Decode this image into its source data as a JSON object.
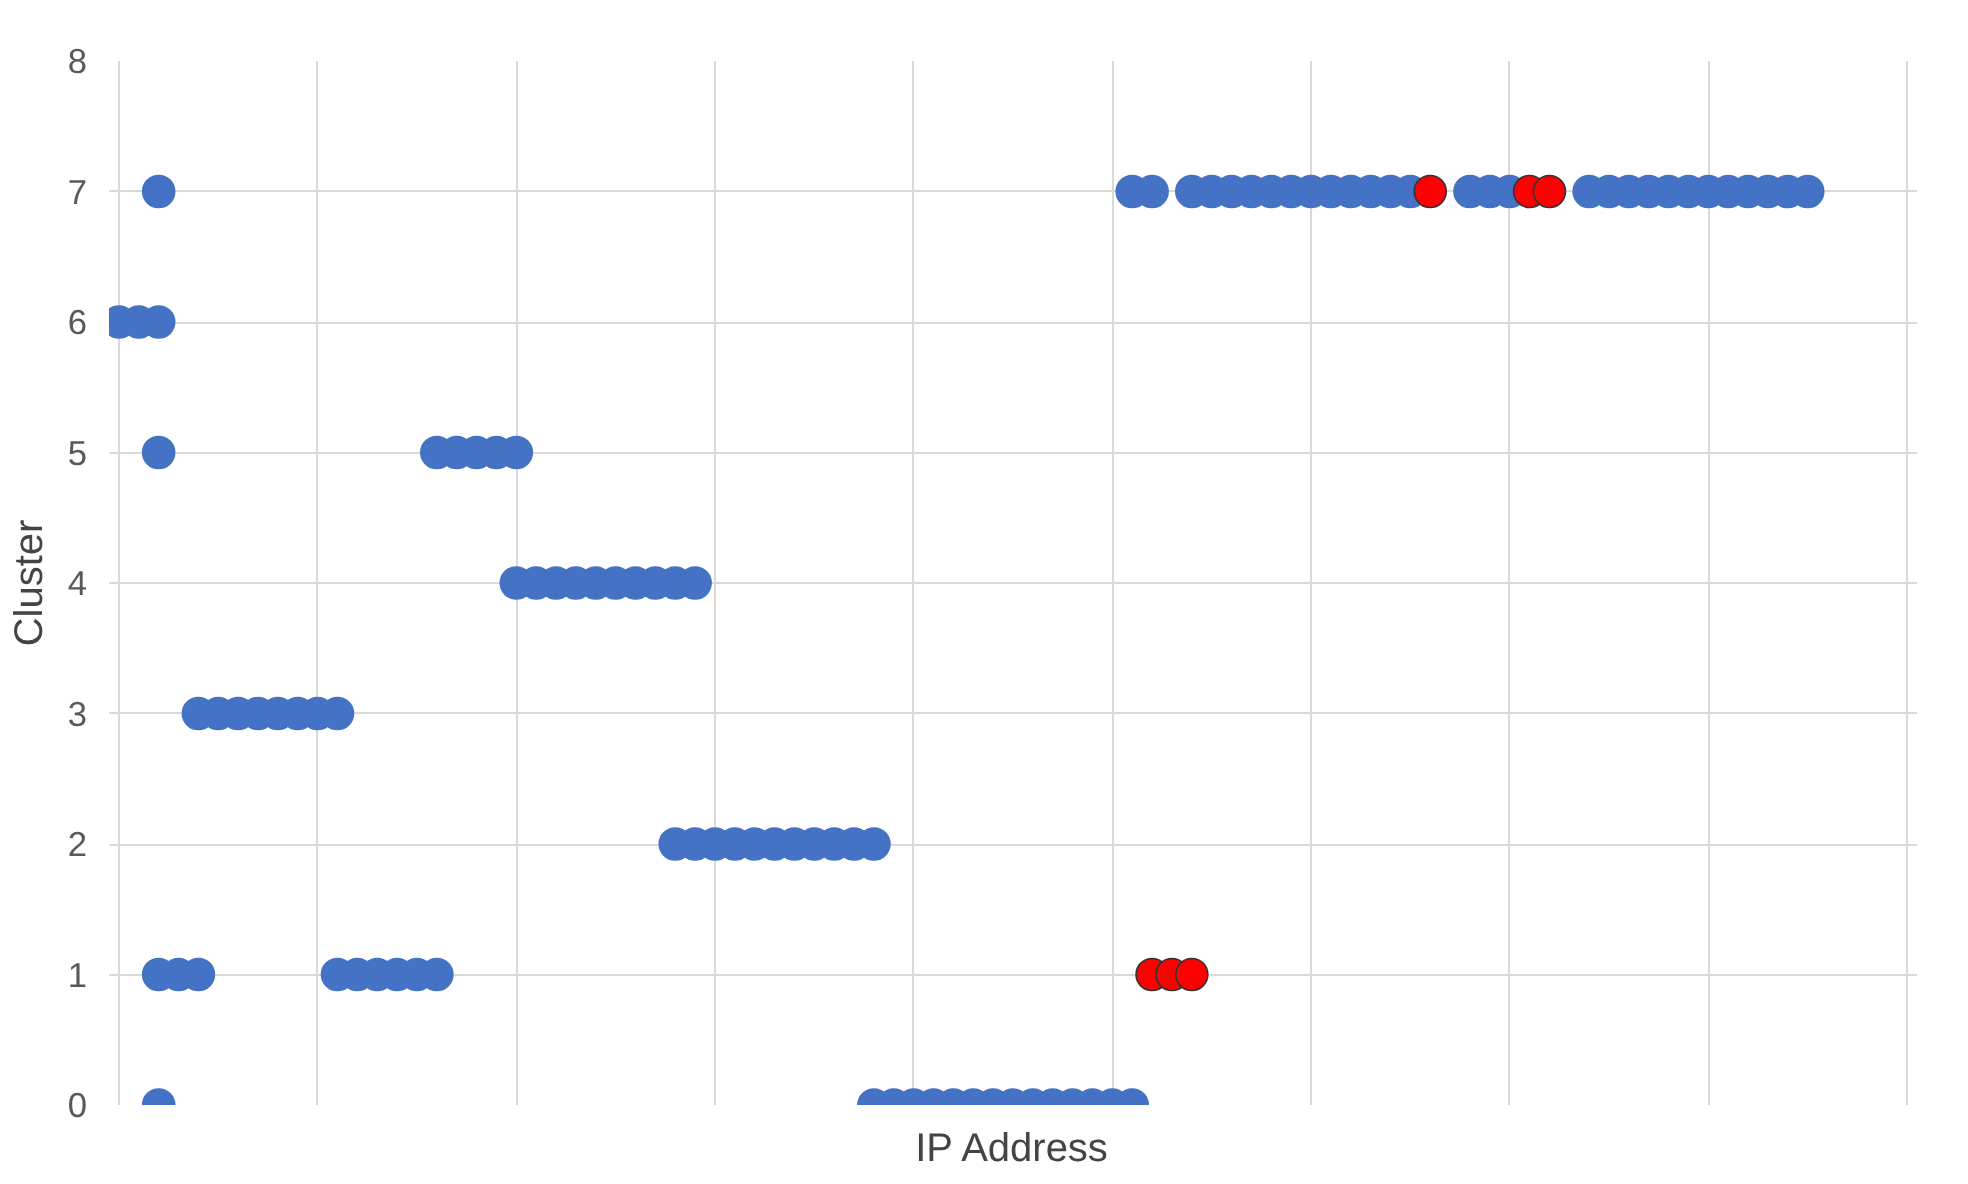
{
  "chart_data": {
    "type": "scatter",
    "xlabel": "IP Address",
    "ylabel": "Cluster",
    "categories": [
      null,
      null,
      null,
      null,
      null,
      null,
      null,
      null,
      null,
      null,
      null,
      null,
      null,
      null,
      null,
      null,
      null,
      null,
      null,
      null,
      null,
      null,
      null,
      null,
      null,
      null,
      null,
      null,
      null,
      null,
      null,
      null,
      null,
      null,
      null,
      null,
      null,
      null,
      null,
      null,
      null,
      null,
      null,
      null,
      null,
      null,
      null,
      null,
      null,
      null,
      null,
      null,
      null,
      null,
      null,
      null,
      null,
      null,
      null,
      null,
      null,
      null,
      null,
      null,
      null,
      null,
      null,
      null,
      null,
      null,
      null,
      null,
      null,
      null,
      null,
      null,
      null,
      null,
      null,
      null,
      null,
      null,
      null,
      null,
      null,
      null,
      null,
      null,
      null,
      null,
      null
    ],
    "ylim": [
      0,
      8
    ],
    "yticks": [
      0,
      1,
      2,
      3,
      4,
      5,
      6,
      7,
      8
    ],
    "grid": true,
    "tick_labels": "y",
    "marker": "circle",
    "series": [
      {
        "color": "#4472c4",
        "values": [
          null,
          null,
          0,
          null,
          null,
          null,
          null,
          null,
          null,
          null,
          null,
          null,
          null,
          null,
          null,
          null,
          null,
          null,
          null,
          null,
          null,
          null,
          null,
          null,
          null,
          null,
          null,
          null,
          null,
          null,
          null,
          null,
          null,
          null,
          null,
          null,
          null,
          null,
          0,
          0,
          0,
          0,
          0,
          0,
          0,
          0,
          0,
          0,
          0,
          0,
          0,
          0,
          null,
          null,
          null,
          null,
          null,
          null,
          null,
          null,
          null,
          null,
          null,
          null,
          null,
          null,
          null,
          null,
          null,
          null,
          null,
          null,
          null,
          null,
          null,
          null,
          null,
          null,
          null,
          null,
          null,
          null,
          null,
          null,
          null,
          null,
          null,
          null,
          null,
          null,
          null
        ]
      },
      {
        "color": "#4472c4",
        "values": [
          null,
          null,
          1,
          1,
          1,
          null,
          null,
          null,
          null,
          null,
          null,
          1,
          1,
          1,
          1,
          1,
          1,
          null,
          null,
          null,
          null,
          null,
          null,
          null,
          null,
          null,
          null,
          null,
          null,
          null,
          null,
          null,
          null,
          null,
          null,
          null,
          null,
          null,
          null,
          null,
          null,
          null,
          null,
          null,
          null,
          null,
          null,
          null,
          null,
          null,
          null,
          null,
          null,
          null,
          null,
          null,
          null,
          null,
          null,
          null,
          null,
          null,
          null,
          null,
          null,
          null,
          null,
          null,
          null,
          null,
          null,
          null,
          null,
          null,
          null,
          null,
          null,
          null,
          null,
          null,
          null,
          null,
          null,
          null,
          null,
          null,
          null,
          null,
          null,
          null,
          null
        ]
      },
      {
        "color": "#4472c4",
        "values": [
          null,
          null,
          null,
          null,
          null,
          null,
          null,
          null,
          null,
          null,
          null,
          null,
          null,
          null,
          null,
          null,
          null,
          null,
          null,
          null,
          null,
          null,
          null,
          null,
          null,
          null,
          null,
          null,
          2,
          2,
          2,
          2,
          2,
          2,
          2,
          2,
          2,
          2,
          2,
          null,
          null,
          null,
          null,
          null,
          null,
          null,
          null,
          null,
          null,
          null,
          null,
          null,
          null,
          null,
          null,
          null,
          null,
          null,
          null,
          null,
          null,
          null,
          null,
          null,
          null,
          null,
          null,
          null,
          null,
          null,
          null,
          null,
          null,
          null,
          null,
          null,
          null,
          null,
          null,
          null,
          null,
          null,
          null,
          null,
          null,
          null,
          null,
          null,
          null,
          null,
          null
        ]
      },
      {
        "color": "#4472c4",
        "values": [
          null,
          null,
          null,
          null,
          3,
          3,
          3,
          3,
          3,
          3,
          3,
          3,
          null,
          null,
          null,
          null,
          null,
          null,
          null,
          null,
          null,
          null,
          null,
          null,
          null,
          null,
          null,
          null,
          null,
          null,
          null,
          null,
          null,
          null,
          null,
          null,
          null,
          null,
          null,
          null,
          null,
          null,
          null,
          null,
          null,
          null,
          null,
          null,
          null,
          null,
          null,
          null,
          null,
          null,
          null,
          null,
          null,
          null,
          null,
          null,
          null,
          null,
          null,
          null,
          null,
          null,
          null,
          null,
          null,
          null,
          null,
          null,
          null,
          null,
          null,
          null,
          null,
          null,
          null,
          null,
          null,
          null,
          null,
          null,
          null,
          null,
          null,
          null,
          null,
          null,
          null
        ]
      },
      {
        "color": "#4472c4",
        "values": [
          null,
          null,
          null,
          null,
          null,
          null,
          null,
          null,
          null,
          null,
          null,
          null,
          null,
          null,
          null,
          null,
          null,
          null,
          null,
          null,
          4,
          4,
          4,
          4,
          4,
          4,
          4,
          4,
          4,
          4,
          null,
          null,
          null,
          null,
          null,
          null,
          null,
          null,
          null,
          null,
          null,
          null,
          null,
          null,
          null,
          null,
          null,
          null,
          null,
          null,
          null,
          null,
          null,
          null,
          null,
          null,
          null,
          null,
          null,
          null,
          null,
          null,
          null,
          null,
          null,
          null,
          null,
          null,
          null,
          null,
          null,
          null,
          null,
          null,
          null,
          null,
          null,
          null,
          null,
          null,
          null,
          null,
          null,
          null,
          null,
          null,
          null,
          null,
          null,
          null,
          null
        ]
      },
      {
        "color": "#4472c4",
        "values": [
          null,
          null,
          5,
          null,
          null,
          null,
          null,
          null,
          null,
          null,
          null,
          null,
          null,
          null,
          null,
          null,
          5,
          5,
          5,
          5,
          5,
          null,
          null,
          null,
          null,
          null,
          null,
          null,
          null,
          null,
          null,
          null,
          null,
          null,
          null,
          null,
          null,
          null,
          null,
          null,
          null,
          null,
          null,
          null,
          null,
          null,
          null,
          null,
          null,
          null,
          null,
          null,
          null,
          null,
          null,
          null,
          null,
          null,
          null,
          null,
          null,
          null,
          null,
          null,
          null,
          null,
          null,
          null,
          null,
          null,
          null,
          null,
          null,
          null,
          null,
          null,
          null,
          null,
          null,
          null,
          null,
          null,
          null,
          null,
          null,
          null,
          null,
          null,
          null,
          null,
          null
        ]
      },
      {
        "color": "#4472c4",
        "values": [
          6,
          6,
          6,
          null,
          null,
          null,
          null,
          null,
          null,
          null,
          null,
          null,
          null,
          null,
          null,
          null,
          null,
          null,
          null,
          null,
          null,
          null,
          null,
          null,
          null,
          null,
          null,
          null,
          null,
          null,
          null,
          null,
          null,
          null,
          null,
          null,
          null,
          null,
          null,
          null,
          null,
          null,
          null,
          null,
          null,
          null,
          null,
          null,
          null,
          null,
          null,
          null,
          null,
          null,
          null,
          null,
          null,
          null,
          null,
          null,
          null,
          null,
          null,
          null,
          null,
          null,
          null,
          null,
          null,
          null,
          null,
          null,
          null,
          null,
          null,
          null,
          null,
          null,
          null,
          null,
          null,
          null,
          null,
          null,
          null,
          null,
          null,
          null,
          null,
          null,
          null
        ]
      },
      {
        "color": "#4472c4",
        "values": [
          null,
          null,
          7,
          null,
          null,
          null,
          null,
          null,
          null,
          null,
          null,
          null,
          null,
          null,
          null,
          null,
          null,
          null,
          null,
          null,
          null,
          null,
          null,
          null,
          null,
          null,
          null,
          null,
          null,
          null,
          null,
          null,
          null,
          null,
          null,
          null,
          null,
          null,
          null,
          null,
          null,
          null,
          null,
          null,
          null,
          null,
          null,
          null,
          null,
          null,
          null,
          7,
          7,
          null,
          7,
          7,
          7,
          7,
          7,
          7,
          7,
          7,
          7,
          7,
          7,
          7,
          null,
          null,
          7,
          7,
          7,
          null,
          null,
          null,
          7,
          7,
          7,
          7,
          7,
          7,
          7,
          7,
          7,
          7,
          7,
          7,
          null,
          null,
          null,
          null,
          null
        ]
      },
      {
        "color": "#ff0000",
        "values": [
          null,
          null,
          null,
          null,
          null,
          null,
          null,
          null,
          null,
          null,
          null,
          null,
          null,
          null,
          null,
          null,
          null,
          null,
          null,
          null,
          null,
          null,
          null,
          null,
          null,
          null,
          null,
          null,
          null,
          null,
          null,
          null,
          null,
          null,
          null,
          null,
          null,
          null,
          null,
          null,
          null,
          null,
          null,
          null,
          null,
          null,
          null,
          null,
          null,
          null,
          null,
          null,
          1,
          1,
          1,
          null,
          null,
          null,
          null,
          null,
          null,
          null,
          null,
          null,
          null,
          null,
          7,
          null,
          null,
          null,
          null,
          7,
          7,
          null,
          null,
          null,
          null,
          null,
          null,
          null,
          null,
          null,
          null,
          null,
          null,
          null,
          null,
          null,
          null,
          null,
          null
        ]
      }
    ]
  }
}
